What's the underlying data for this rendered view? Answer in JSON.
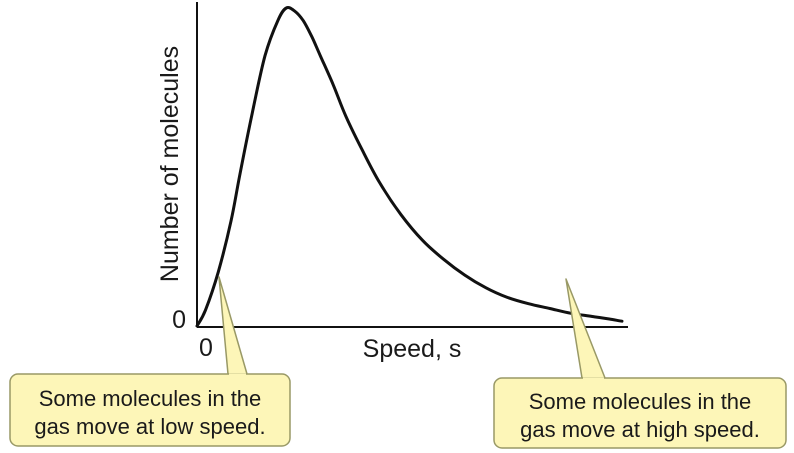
{
  "chart_data": {
    "type": "line",
    "title": "",
    "xlabel": "Speed, s",
    "ylabel": "Number of molecules",
    "x_tick_labels": [
      "0"
    ],
    "y_tick_labels": [
      "0"
    ],
    "grid": false,
    "legend": "none",
    "series": [
      {
        "x": [
          0,
          0.02,
          0.05,
          0.08,
          0.1,
          0.13,
          0.16,
          0.19,
          0.21,
          0.23,
          0.25,
          0.27,
          0.29,
          0.32,
          0.35,
          0.39,
          0.43,
          0.48,
          0.53,
          0.58,
          0.63,
          0.68,
          0.73,
          0.78,
          0.83,
          0.88,
          0.93,
          0.97,
          1.0
        ],
        "y": [
          0,
          0.05,
          0.17,
          0.33,
          0.47,
          0.67,
          0.85,
          0.96,
          1.0,
          0.99,
          0.96,
          0.91,
          0.85,
          0.76,
          0.66,
          0.55,
          0.45,
          0.35,
          0.27,
          0.21,
          0.16,
          0.12,
          0.09,
          0.07,
          0.055,
          0.04,
          0.03,
          0.022,
          0.015
        ],
        "color": "#111111"
      }
    ],
    "annotations": [
      {
        "lines": [
          "Some molecules in the",
          "gas move at low speed."
        ],
        "x": 0.05
      },
      {
        "lines": [
          "Some molecules in the",
          "gas move at high speed."
        ],
        "x": 0.86
      }
    ]
  },
  "colors": {
    "callout_fill": "#fdf6b8",
    "callout_border": "#999966",
    "axis": "#111111"
  }
}
